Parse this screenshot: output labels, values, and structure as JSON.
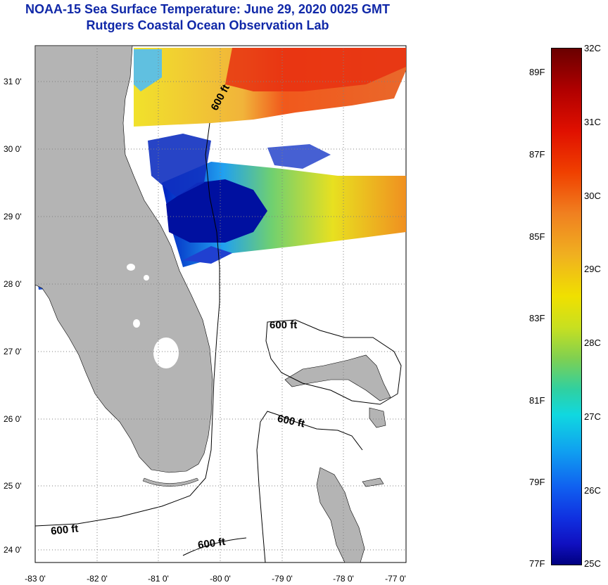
{
  "header": {
    "title": "NOAA-15 Sea Surface Temperature:  June 29, 2020 0025 GMT",
    "subtitle": "Rutgers Coastal Ocean Observation Lab"
  },
  "map": {
    "x_tick_labels": [
      "-83 0'",
      "-82 0'",
      "-81 0'",
      "-80 0'",
      "-79 0'",
      "-78 0'",
      "-77 0'"
    ],
    "y_tick_labels": [
      "31 0'",
      "30 0'",
      "29 0'",
      "28 0'",
      "27 0'",
      "26 0'",
      "25 0'",
      "24 0'"
    ],
    "contour_labels": [
      "600 ft",
      "600 ft",
      "600 ft",
      "600 ft",
      "600 ft"
    ],
    "colors": {
      "land": "#b4b4b4",
      "no_data": "#ffffff",
      "grid": "#808080"
    }
  },
  "colorbar": {
    "celsius_labels": [
      "32C",
      "31C",
      "30C",
      "29C",
      "28C",
      "27C",
      "26C",
      "25C"
    ],
    "fahrenheit_labels": [
      "89F",
      "87F",
      "85F",
      "83F",
      "81F",
      "79F",
      "77F"
    ],
    "range_c": [
      25,
      32
    ]
  }
}
